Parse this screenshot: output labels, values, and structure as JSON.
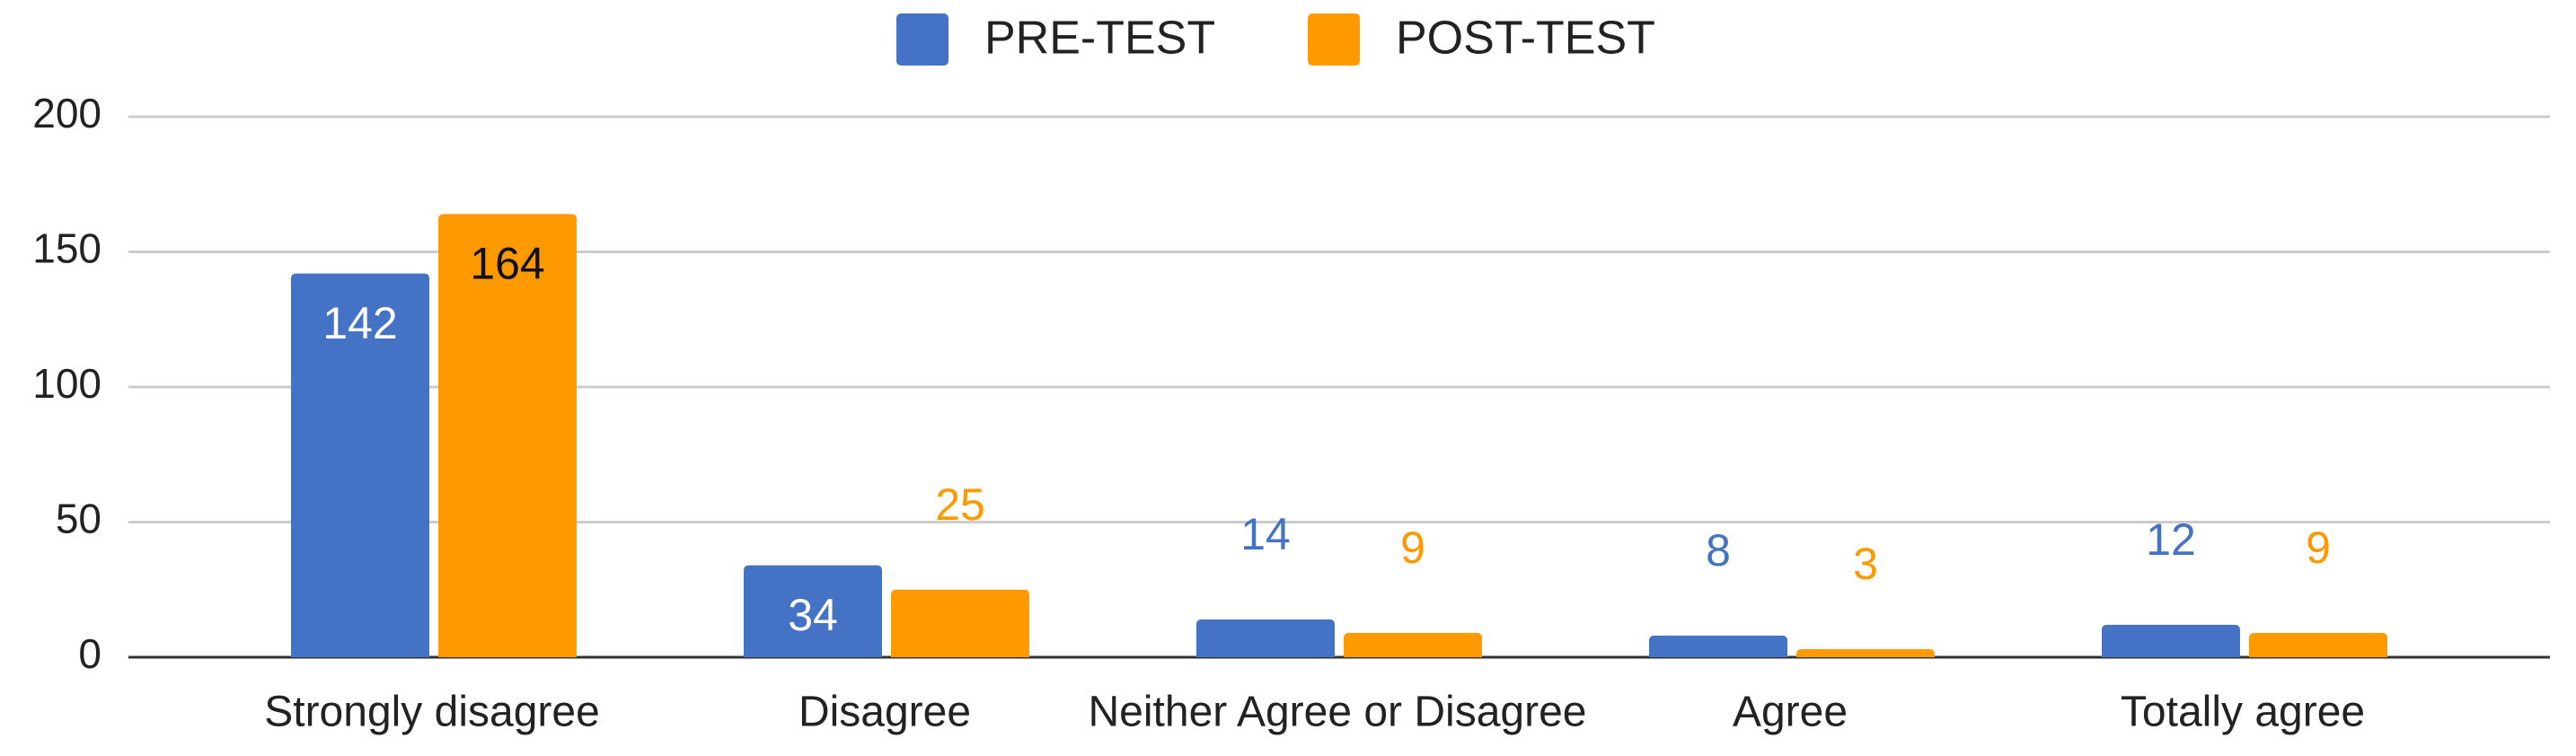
{
  "chart_data": {
    "type": "bar",
    "categories": [
      "Strongly disagree",
      "Disagree",
      "Neither Agree or Disagree",
      "Agree",
      "Totally agree"
    ],
    "series": [
      {
        "name": "PRE-TEST",
        "color": "#4472c4",
        "values": [
          142,
          34,
          14,
          8,
          12
        ]
      },
      {
        "name": "POST-TEST",
        "color": "#ff9900",
        "values": [
          164,
          25,
          9,
          3,
          9
        ]
      }
    ],
    "ylim": [
      0,
      200
    ],
    "yticks": [
      0,
      50,
      100,
      150,
      200
    ],
    "grid": true,
    "legend": "top"
  }
}
